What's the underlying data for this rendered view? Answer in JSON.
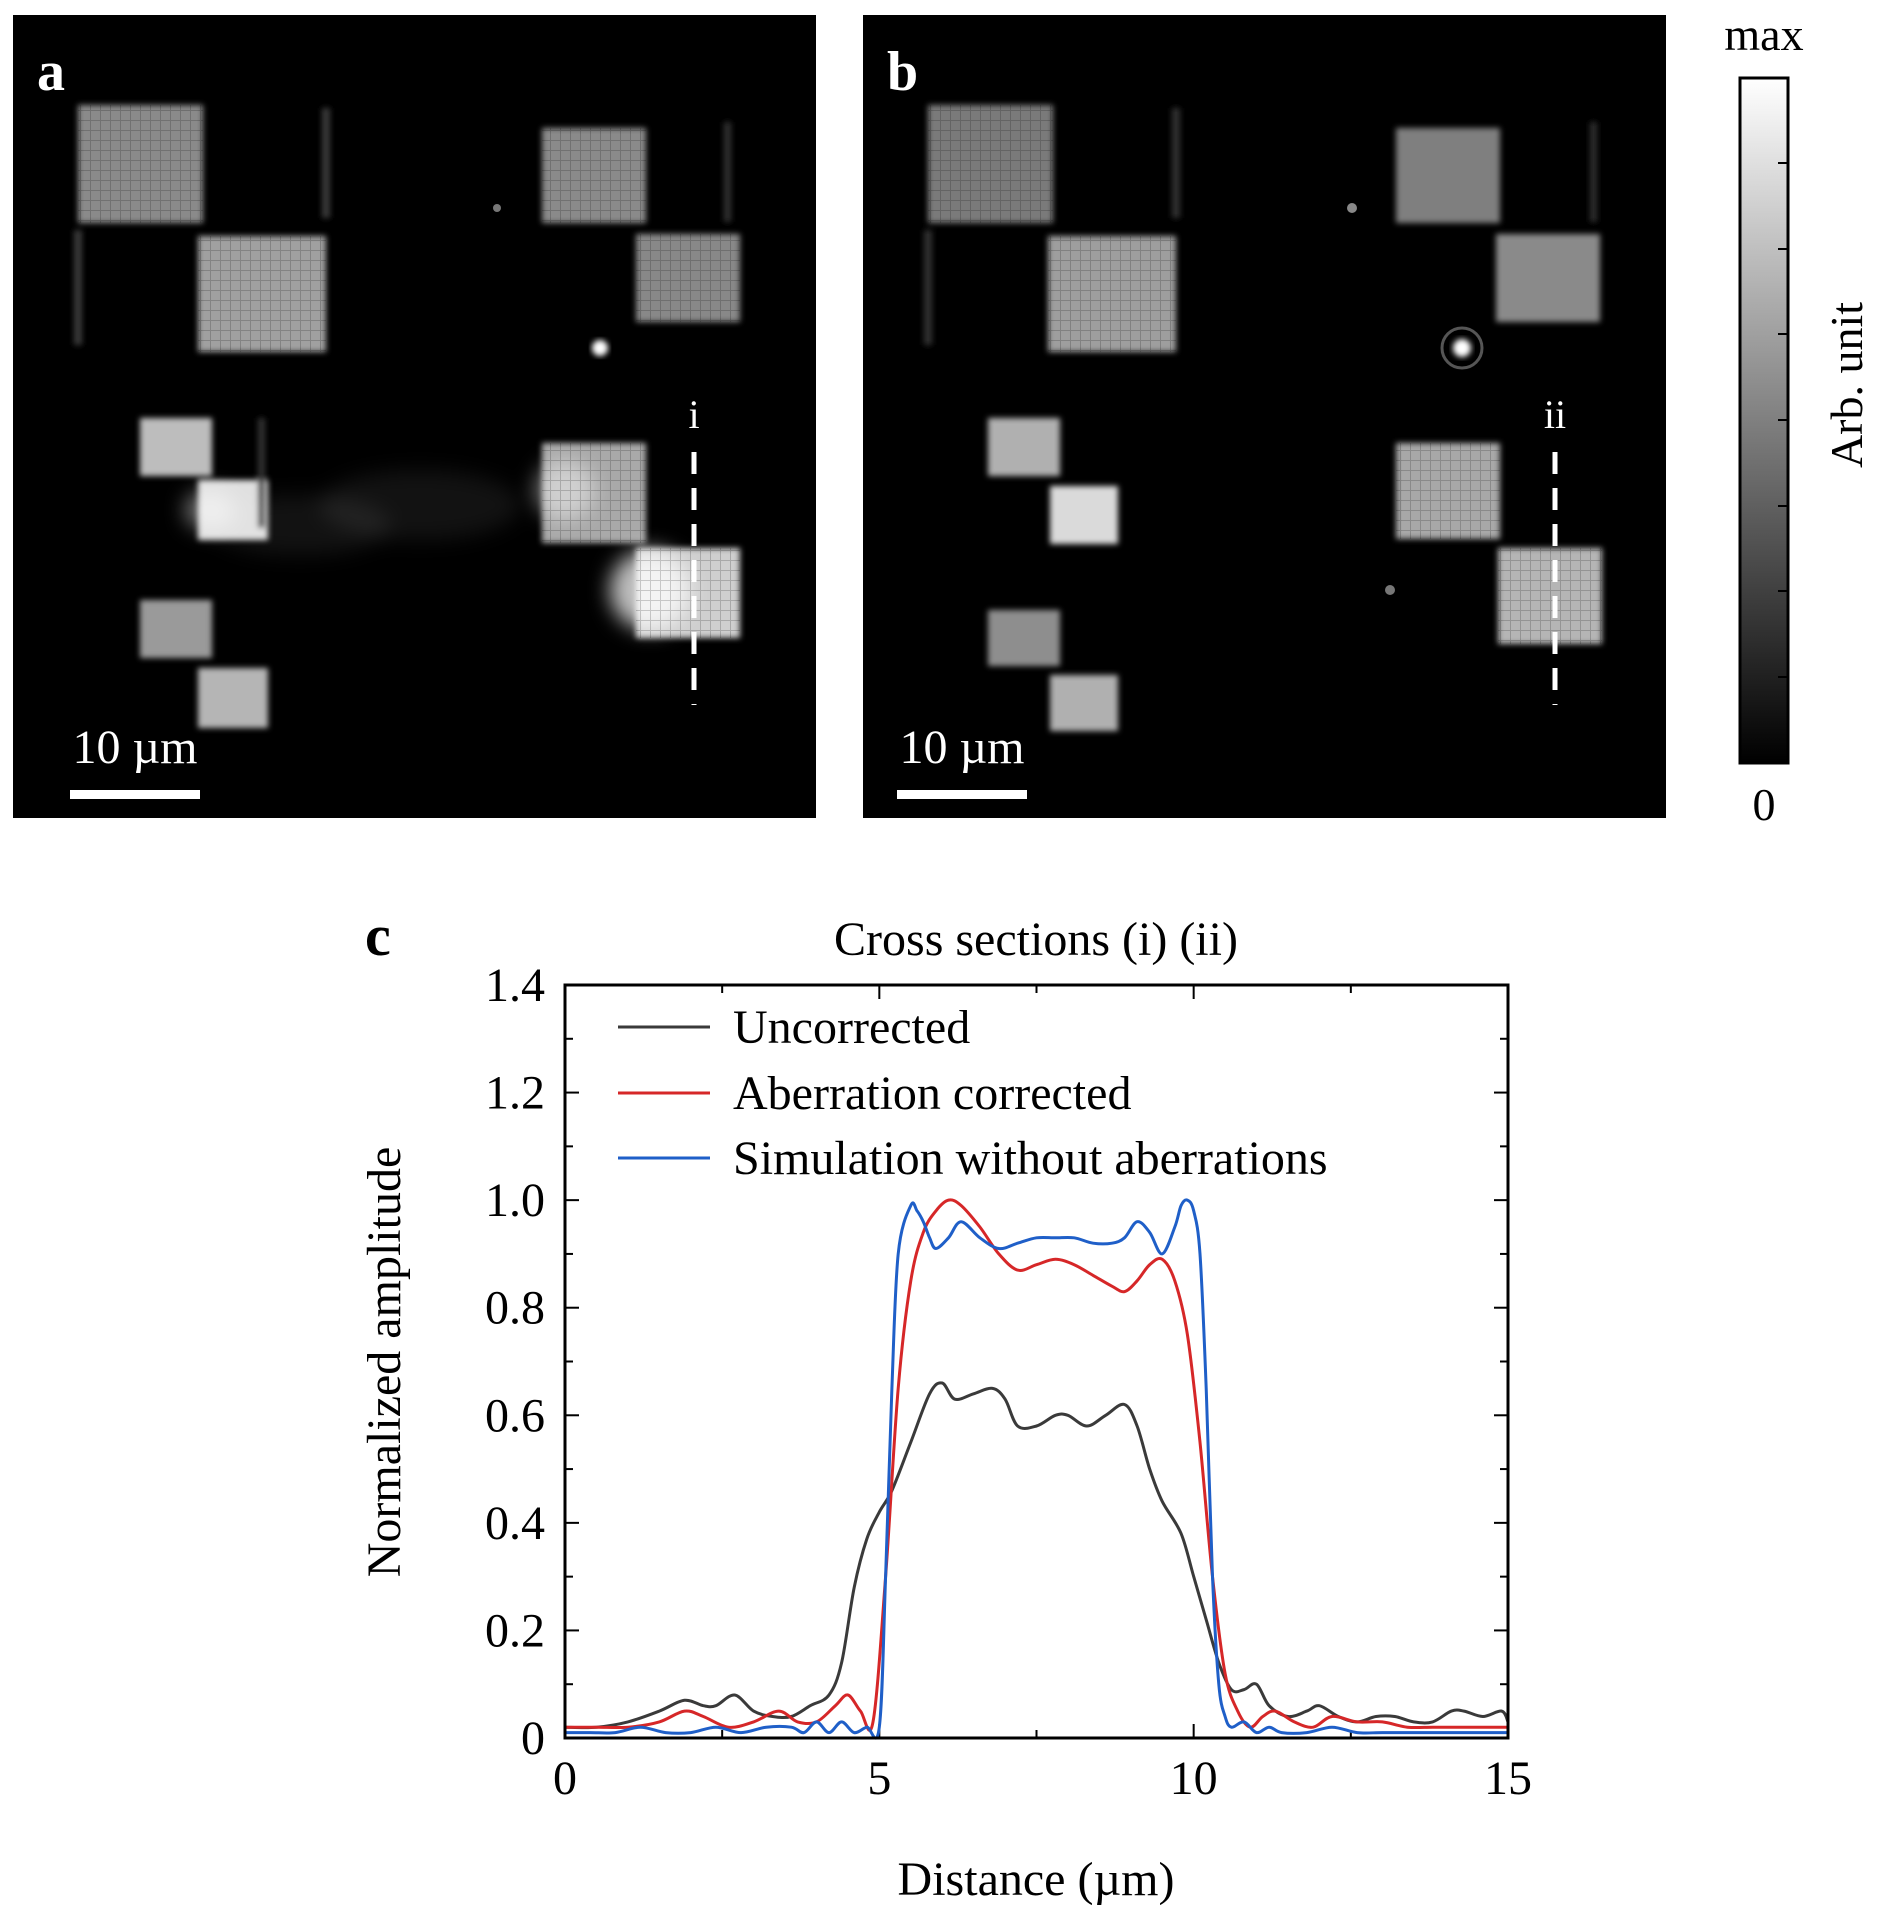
{
  "panels": {
    "a": {
      "letter": "a",
      "scalebar_label": "10 µm",
      "line_label": "i"
    },
    "b": {
      "letter": "b",
      "scalebar_label": "10 µm",
      "line_label": "ii"
    },
    "c": {
      "letter": "c"
    }
  },
  "colorbar": {
    "max_label": "max",
    "min_label": "0",
    "axis_label": "Arb. unit"
  },
  "colors": {
    "uncorrected": "#3a3a3a",
    "corrected": "#d62728",
    "simulation": "#1f5fc8"
  },
  "chart_data": {
    "type": "line",
    "title": "Cross sections (i) (ii)",
    "xlabel": "Distance (µm)",
    "ylabel": "Normalized amplitude",
    "xlim": [
      0,
      15
    ],
    "ylim": [
      0,
      1.4
    ],
    "xticks": [
      0,
      5,
      10,
      15
    ],
    "yticks": [
      0,
      0.2,
      0.4,
      0.6,
      0.8,
      1.0,
      1.2,
      1.4
    ],
    "ytick_labels": [
      "0",
      "0.2",
      "0.4",
      "0.6",
      "0.8",
      "1.0",
      "1.2",
      "1.4"
    ],
    "legend_position": "top-left",
    "series": [
      {
        "name": "Uncorrected",
        "color": "#3a3a3a",
        "x": [
          0,
          0.5,
          1.0,
          1.5,
          1.9,
          2.2,
          2.4,
          2.7,
          3.0,
          3.3,
          3.6,
          3.9,
          4.2,
          4.4,
          4.6,
          4.8,
          5.0,
          5.2,
          5.5,
          5.8,
          6.0,
          6.2,
          6.5,
          6.8,
          7.0,
          7.2,
          7.5,
          7.8,
          8.0,
          8.3,
          8.6,
          8.9,
          9.1,
          9.3,
          9.5,
          9.8,
          10.0,
          10.2,
          10.4,
          10.6,
          10.8,
          11.0,
          11.2,
          11.5,
          11.8,
          12.0,
          12.3,
          12.6,
          12.9,
          13.2,
          13.5,
          13.8,
          14.1,
          14.3,
          14.6,
          14.9,
          15.0
        ],
        "y": [
          0.02,
          0.02,
          0.03,
          0.05,
          0.07,
          0.06,
          0.06,
          0.08,
          0.05,
          0.04,
          0.04,
          0.06,
          0.08,
          0.14,
          0.28,
          0.37,
          0.42,
          0.46,
          0.55,
          0.64,
          0.66,
          0.63,
          0.64,
          0.65,
          0.63,
          0.58,
          0.58,
          0.6,
          0.6,
          0.58,
          0.6,
          0.62,
          0.58,
          0.5,
          0.44,
          0.38,
          0.3,
          0.22,
          0.14,
          0.09,
          0.09,
          0.1,
          0.06,
          0.04,
          0.05,
          0.06,
          0.04,
          0.03,
          0.04,
          0.04,
          0.03,
          0.03,
          0.05,
          0.05,
          0.04,
          0.05,
          0.03
        ]
      },
      {
        "name": "Aberration corrected",
        "color": "#d62728",
        "x": [
          0,
          0.5,
          1.0,
          1.5,
          1.9,
          2.2,
          2.6,
          3.0,
          3.4,
          3.7,
          4.0,
          4.3,
          4.5,
          4.7,
          4.9,
          5.1,
          5.3,
          5.5,
          5.7,
          5.9,
          6.1,
          6.3,
          6.6,
          6.9,
          7.2,
          7.5,
          7.8,
          8.1,
          8.4,
          8.7,
          8.9,
          9.1,
          9.3,
          9.5,
          9.7,
          9.9,
          10.1,
          10.3,
          10.5,
          10.7,
          10.9,
          11.1,
          11.3,
          11.6,
          11.9,
          12.2,
          12.6,
          13.0,
          13.4,
          13.8,
          14.2,
          14.6,
          15.0
        ],
        "y": [
          0.02,
          0.02,
          0.02,
          0.03,
          0.05,
          0.04,
          0.02,
          0.03,
          0.05,
          0.03,
          0.03,
          0.06,
          0.08,
          0.05,
          0.03,
          0.3,
          0.65,
          0.85,
          0.94,
          0.98,
          1.0,
          0.99,
          0.95,
          0.9,
          0.87,
          0.88,
          0.89,
          0.88,
          0.86,
          0.84,
          0.83,
          0.85,
          0.88,
          0.89,
          0.85,
          0.75,
          0.55,
          0.3,
          0.12,
          0.05,
          0.02,
          0.04,
          0.05,
          0.03,
          0.02,
          0.04,
          0.03,
          0.03,
          0.02,
          0.02,
          0.02,
          0.02,
          0.02
        ]
      },
      {
        "name": "Simulation without aberrations",
        "color": "#1f5fc8",
        "x": [
          0,
          0.4,
          0.8,
          1.2,
          1.6,
          2.0,
          2.4,
          2.8,
          3.2,
          3.6,
          3.8,
          4.0,
          4.2,
          4.4,
          4.6,
          4.8,
          5.0,
          5.1,
          5.2,
          5.3,
          5.5,
          5.6,
          5.7,
          5.8,
          5.9,
          6.1,
          6.3,
          6.6,
          6.9,
          7.2,
          7.5,
          7.8,
          8.1,
          8.4,
          8.7,
          8.9,
          9.1,
          9.3,
          9.5,
          9.7,
          9.8,
          9.9,
          10.0,
          10.1,
          10.2,
          10.3,
          10.4,
          10.5,
          10.6,
          10.8,
          11.0,
          11.2,
          11.4,
          11.8,
          12.2,
          12.6,
          13.0,
          13.5,
          14.0,
          14.5,
          15.0
        ],
        "y": [
          0.01,
          0.01,
          0.01,
          0.02,
          0.01,
          0.01,
          0.02,
          0.01,
          0.02,
          0.02,
          0.01,
          0.03,
          0.01,
          0.03,
          0.01,
          0.02,
          0.02,
          0.3,
          0.65,
          0.9,
          0.99,
          0.98,
          0.96,
          0.93,
          0.91,
          0.93,
          0.96,
          0.93,
          0.91,
          0.92,
          0.93,
          0.93,
          0.93,
          0.92,
          0.92,
          0.93,
          0.96,
          0.94,
          0.9,
          0.95,
          0.99,
          1.0,
          0.98,
          0.9,
          0.65,
          0.3,
          0.1,
          0.04,
          0.02,
          0.03,
          0.01,
          0.02,
          0.01,
          0.01,
          0.02,
          0.01,
          0.01,
          0.01,
          0.01,
          0.01,
          0.01
        ]
      }
    ]
  }
}
